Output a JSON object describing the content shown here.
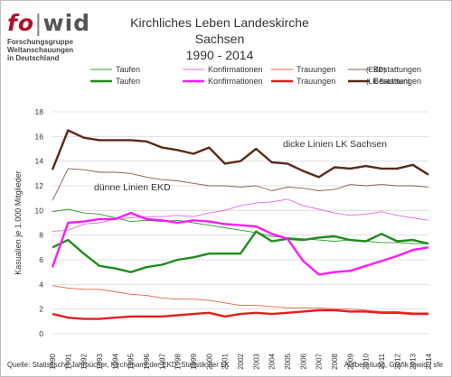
{
  "logo": {
    "fo": "fo",
    "bar": "|",
    "wid": "wid",
    "sub": [
      "Forschungsgruppe",
      "Weltanschauungen",
      "in Deutschland"
    ]
  },
  "title": {
    "line1": "Kirchliches Leben Landeskirche Sachsen",
    "line2": "1990 - 2014"
  },
  "footer": {
    "source": "Quelle: Statistische Jahrbücher, Kirchenamt der EKD, Statistik der LK",
    "credit": "Aufbereitung, Grafik fowid / sfe"
  },
  "chart_data": {
    "type": "line",
    "ylabel": "Kasualien je 1.000 Mitglieder",
    "ylim": [
      0,
      18
    ],
    "yticks": [
      0,
      2,
      4,
      6,
      8,
      10,
      12,
      14,
      16,
      18
    ],
    "grid": true,
    "x": [
      "1990",
      "1991",
      "1992",
      "1993",
      "1994",
      "1995",
      "1996",
      "1997",
      "1998",
      "1999",
      "2000",
      "2001",
      "2002",
      "2003",
      "2004",
      "2005",
      "2006",
      "2007",
      "2008",
      "2009",
      "2010",
      "2011",
      "2012",
      "2013",
      "2014"
    ],
    "annotations": [
      "dicke Linien LK Sachsen",
      "dünne Linien EKD"
    ],
    "legend_tags": [
      "(EKD)",
      "(LK Sachsen)"
    ],
    "series": [
      {
        "name": "Taufen",
        "group": "EKD",
        "color": "#2ca02c",
        "width": 0.9,
        "values": [
          9.9,
          10.1,
          9.8,
          9.7,
          9.4,
          9.1,
          9.2,
          9.1,
          9.2,
          9.0,
          8.8,
          8.6,
          8.4,
          8.2,
          7.9,
          7.8,
          7.7,
          7.6,
          7.5,
          7.6,
          7.5,
          7.4,
          7.4,
          7.3,
          7.3
        ]
      },
      {
        "name": "Konfirmationen",
        "group": "EKD",
        "color": "#e668e6",
        "width": 0.9,
        "values": [
          8.3,
          8.4,
          8.9,
          9.0,
          9.3,
          9.4,
          9.5,
          9.5,
          9.6,
          9.5,
          9.8,
          10.0,
          10.4,
          10.6,
          10.7,
          10.9,
          10.4,
          10.1,
          9.8,
          9.6,
          9.7,
          9.9,
          9.6,
          9.4,
          9.2
        ]
      },
      {
        "name": "Trauungen",
        "group": "EKD",
        "color": "#e8604a",
        "width": 0.9,
        "values": [
          3.9,
          3.7,
          3.6,
          3.6,
          3.4,
          3.2,
          3.1,
          2.9,
          2.8,
          2.8,
          2.7,
          2.5,
          2.3,
          2.3,
          2.2,
          2.1,
          2.1,
          2.1,
          2.0,
          2.0,
          1.9,
          1.8,
          1.8,
          1.7,
          1.7
        ]
      },
      {
        "name": "Bestattungen",
        "group": "EKD",
        "color": "#8b5a4a",
        "width": 0.9,
        "values": [
          10.8,
          13.4,
          13.3,
          13.1,
          13.1,
          13.0,
          12.7,
          12.5,
          12.4,
          12.2,
          12.0,
          12.0,
          11.9,
          12.0,
          11.6,
          11.9,
          11.8,
          11.6,
          11.7,
          12.1,
          12.0,
          12.1,
          12.0,
          12.0,
          11.9
        ]
      },
      {
        "name": "Taufen",
        "group": "LK Sachsen",
        "color": "#1e8c1e",
        "width": 2.4,
        "values": [
          7.0,
          7.6,
          6.5,
          5.5,
          5.3,
          5.0,
          5.4,
          5.6,
          6.0,
          6.2,
          6.5,
          6.5,
          6.5,
          8.3,
          7.5,
          7.7,
          7.6,
          7.8,
          7.9,
          7.6,
          7.5,
          8.1,
          7.5,
          7.6,
          7.3
        ]
      },
      {
        "name": "Konfirmationen",
        "group": "LK Sachsen",
        "color": "#ff1aff",
        "width": 2.4,
        "values": [
          5.4,
          9.0,
          9.1,
          9.3,
          9.3,
          9.8,
          9.3,
          9.2,
          9.0,
          9.2,
          9.1,
          8.9,
          8.8,
          8.7,
          8.1,
          7.7,
          5.9,
          4.8,
          5.0,
          5.1,
          5.5,
          5.9,
          6.3,
          6.8,
          7.0
        ]
      },
      {
        "name": "Trauungen",
        "group": "LK Sachsen",
        "color": "#e61e1e",
        "width": 2.4,
        "values": [
          1.6,
          1.3,
          1.2,
          1.2,
          1.3,
          1.4,
          1.4,
          1.4,
          1.5,
          1.6,
          1.7,
          1.4,
          1.6,
          1.7,
          1.6,
          1.7,
          1.8,
          1.9,
          1.9,
          1.8,
          1.8,
          1.7,
          1.7,
          1.6,
          1.6
        ]
      },
      {
        "name": "Bestattungen",
        "group": "LK Sachsen",
        "color": "#5a2a18",
        "width": 2.4,
        "values": [
          13.3,
          16.5,
          15.9,
          15.7,
          15.7,
          15.7,
          15.6,
          15.1,
          14.9,
          14.6,
          15.1,
          13.8,
          14.0,
          15.0,
          13.9,
          13.8,
          13.2,
          12.7,
          13.5,
          13.4,
          13.6,
          13.4,
          13.4,
          13.7,
          12.9
        ]
      }
    ]
  }
}
